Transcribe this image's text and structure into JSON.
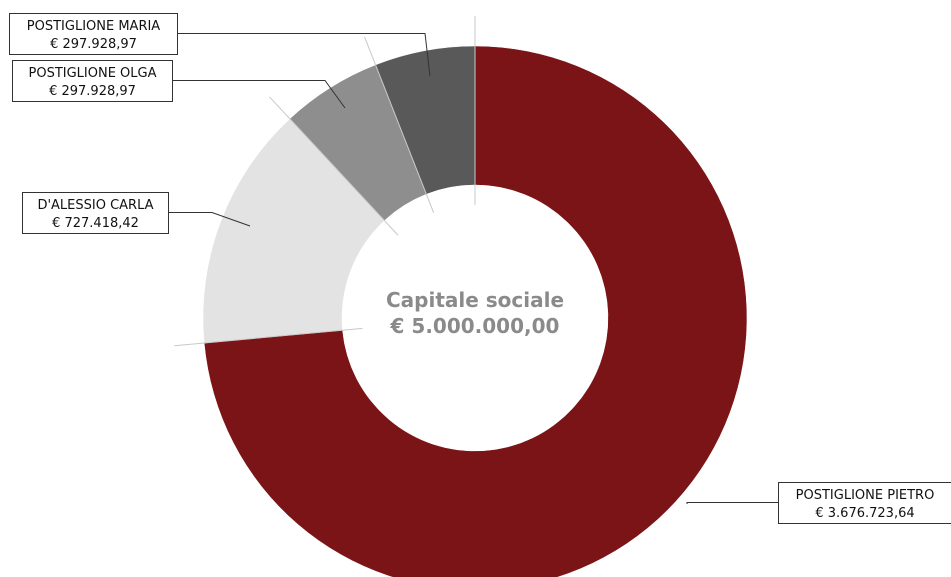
{
  "chart_data": {
    "type": "pie",
    "variant": "donut",
    "center_label": {
      "title": "Capitale sociale",
      "value": "€ 5.000.000,00"
    },
    "total": 5000000.0,
    "slices": [
      {
        "name": "POSTIGLIONE PIETRO",
        "value": 3676723.64,
        "value_label": "€ 3.676.723,64",
        "color": "#7b1416"
      },
      {
        "name": "D'ALESSIO CARLA",
        "value": 727418.42,
        "value_label": "€ 727.418,42",
        "color": "#e3e3e3"
      },
      {
        "name": "POSTIGLIONE OLGA",
        "value": 297928.97,
        "value_label": "€ 297.928,97",
        "color": "#8e8e8e"
      },
      {
        "name": "POSTIGLIONE MARIA",
        "value": 297928.97,
        "value_label": "€ 297.928,97",
        "color": "#595959"
      }
    ],
    "legend": "none"
  }
}
